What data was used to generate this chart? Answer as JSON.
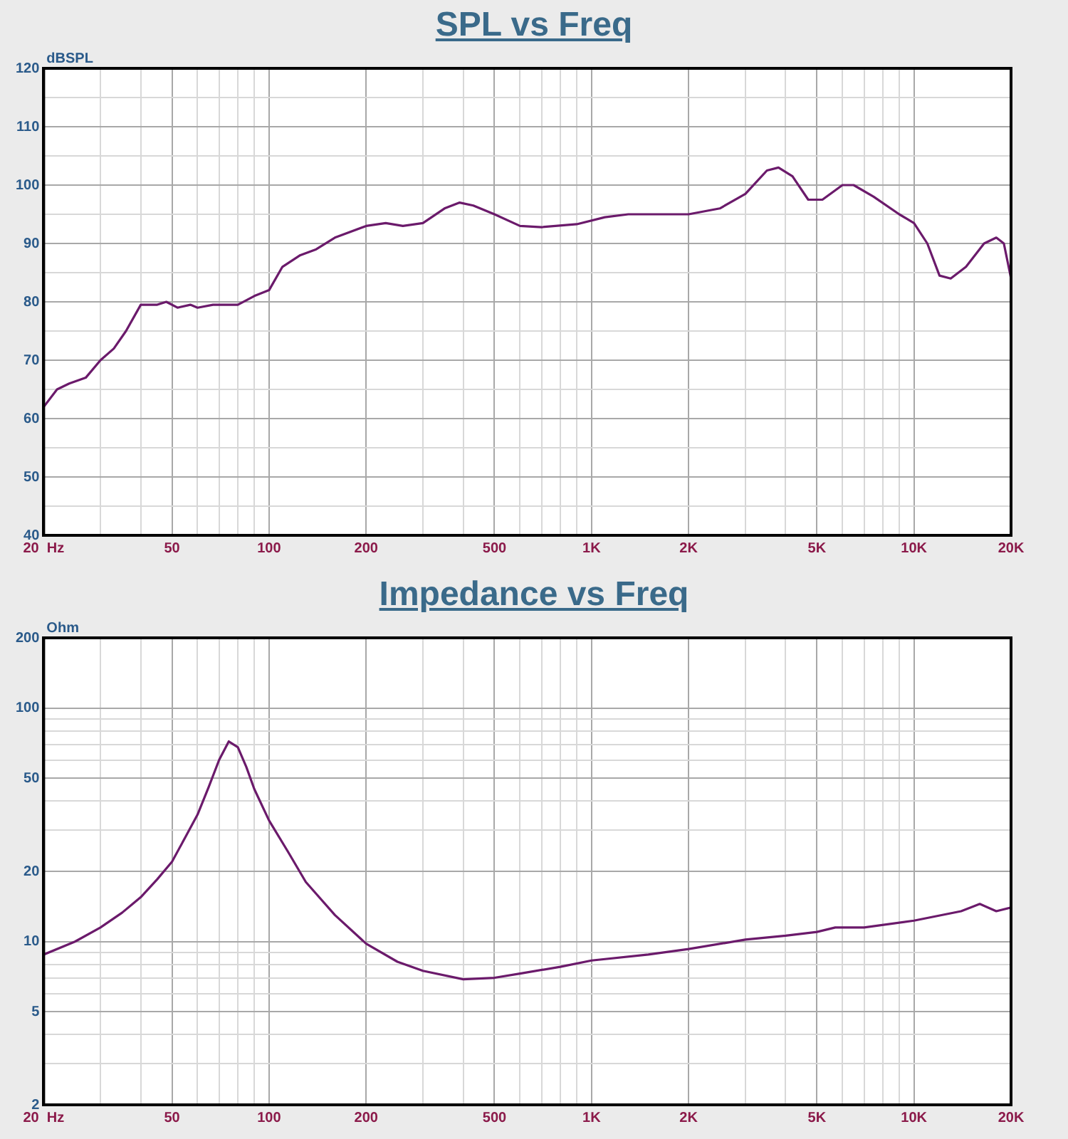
{
  "chart_data": [
    {
      "type": "line",
      "title": "SPL vs Freq",
      "ylabel": "dBSPL",
      "log": "x",
      "grid": true,
      "marker": "none",
      "line_style": "solid",
      "x": [
        20,
        22,
        24,
        27,
        30,
        33,
        36,
        40,
        45,
        48,
        52,
        57,
        60,
        67,
        80,
        90,
        100,
        110,
        125,
        140,
        160,
        200,
        230,
        260,
        300,
        350,
        390,
        430,
        500,
        600,
        700,
        900,
        1100,
        1300,
        2000,
        2500,
        3000,
        3500,
        3800,
        4200,
        4700,
        5200,
        6000,
        6500,
        7500,
        9000,
        10000,
        11000,
        12000,
        13000,
        14500,
        16500,
        18000,
        19000,
        20000
      ],
      "series": [
        {
          "color": "#6b1a6b",
          "values": [
            62,
            65,
            66,
            67,
            70,
            72,
            75,
            79.5,
            79.5,
            80,
            79,
            79.5,
            79,
            79.5,
            79.5,
            81,
            82,
            86,
            88,
            89,
            91,
            93,
            93.5,
            93,
            93.5,
            96,
            97,
            96.5,
            95,
            93,
            92.8,
            93.3,
            94.5,
            95,
            95,
            96,
            98.5,
            102.5,
            103,
            101.5,
            97.5,
            97.5,
            100,
            100,
            98,
            95,
            93.5,
            90,
            84.5,
            84,
            86,
            90,
            91,
            90,
            84
          ]
        }
      ],
      "xlim": [
        20,
        20000
      ],
      "xticks": [
        {
          "value": 20,
          "label": "20  Hz"
        },
        {
          "value": 30,
          "label": null
        },
        {
          "value": 40,
          "label": null
        },
        50,
        {
          "value": 60,
          "label": null
        },
        {
          "value": 70,
          "label": null
        },
        {
          "value": 80,
          "label": null
        },
        {
          "value": 90,
          "label": null
        },
        100,
        200,
        {
          "value": 300,
          "label": null
        },
        {
          "value": 400,
          "label": null
        },
        500,
        {
          "value": 600,
          "label": null
        },
        {
          "value": 700,
          "label": null
        },
        {
          "value": 800,
          "label": null
        },
        {
          "value": 900,
          "label": null
        },
        {
          "value": 1000,
          "label": "1K"
        },
        {
          "value": 2000,
          "label": "2K"
        },
        {
          "value": 3000,
          "label": null
        },
        {
          "value": 4000,
          "label": null
        },
        {
          "value": 5000,
          "label": "5K"
        },
        {
          "value": 6000,
          "label": null
        },
        {
          "value": 7000,
          "label": null
        },
        {
          "value": 8000,
          "label": null
        },
        {
          "value": 9000,
          "label": null
        },
        {
          "value": 10000,
          "label": "10K"
        },
        {
          "value": 20000,
          "label": "20K"
        }
      ],
      "ylim": [
        40,
        120
      ],
      "yticks": [
        40,
        {
          "value": 45,
          "label": null
        },
        50,
        {
          "value": 55,
          "label": null
        },
        60,
        {
          "value": 65,
          "label": null
        },
        70,
        {
          "value": 75,
          "label": null
        },
        80,
        {
          "value": 85,
          "label": null
        },
        90,
        {
          "value": 95,
          "label": null
        },
        100,
        {
          "value": 105,
          "label": null
        },
        110,
        {
          "value": 115,
          "label": null
        },
        120
      ]
    },
    {
      "type": "line",
      "title": "Impedance vs Freq",
      "ylabel": "Ohm",
      "log": "xy",
      "grid": true,
      "marker": "none",
      "line_style": "solid",
      "x": [
        20,
        25,
        30,
        35,
        40,
        45,
        50,
        55,
        60,
        65,
        70,
        75,
        80,
        85,
        90,
        100,
        115,
        130,
        160,
        200,
        250,
        300,
        400,
        500,
        600,
        800,
        1000,
        1500,
        2000,
        3000,
        4000,
        5000,
        5700,
        7000,
        10000,
        14000,
        16000,
        18000,
        20000
      ],
      "series": [
        {
          "color": "#6b1a6b",
          "values": [
            8.8,
            10,
            11.5,
            13.3,
            15.5,
            18.5,
            22,
            28,
            35,
            46,
            60,
            72,
            68,
            56,
            45,
            33,
            24,
            18,
            13,
            9.8,
            8.2,
            7.5,
            6.9,
            7.0,
            7.3,
            7.8,
            8.3,
            8.8,
            9.3,
            10.2,
            10.6,
            11,
            11.5,
            11.5,
            12.3,
            13.5,
            14.5,
            13.5,
            14
          ]
        }
      ],
      "xlim": [
        20,
        20000
      ],
      "xticks": [
        {
          "value": 20,
          "label": "20  Hz"
        },
        {
          "value": 30,
          "label": null
        },
        {
          "value": 40,
          "label": null
        },
        50,
        {
          "value": 60,
          "label": null
        },
        {
          "value": 70,
          "label": null
        },
        {
          "value": 80,
          "label": null
        },
        {
          "value": 90,
          "label": null
        },
        100,
        200,
        {
          "value": 300,
          "label": null
        },
        {
          "value": 400,
          "label": null
        },
        500,
        {
          "value": 600,
          "label": null
        },
        {
          "value": 700,
          "label": null
        },
        {
          "value": 800,
          "label": null
        },
        {
          "value": 900,
          "label": null
        },
        {
          "value": 1000,
          "label": "1K"
        },
        {
          "value": 2000,
          "label": "2K"
        },
        {
          "value": 3000,
          "label": null
        },
        {
          "value": 4000,
          "label": null
        },
        {
          "value": 5000,
          "label": "5K"
        },
        {
          "value": 6000,
          "label": null
        },
        {
          "value": 7000,
          "label": null
        },
        {
          "value": 8000,
          "label": null
        },
        {
          "value": 9000,
          "label": null
        },
        {
          "value": 10000,
          "label": "10K"
        },
        {
          "value": 20000,
          "label": "20K"
        }
      ],
      "ylim": [
        2,
        200
      ],
      "yticks": [
        2,
        {
          "value": 3,
          "label": null
        },
        {
          "value": 4,
          "label": null
        },
        5,
        {
          "value": 6,
          "label": null
        },
        {
          "value": 7,
          "label": null
        },
        {
          "value": 8,
          "label": null
        },
        {
          "value": 9,
          "label": null
        },
        10,
        20,
        {
          "value": 30,
          "label": null
        },
        {
          "value": 40,
          "label": null
        },
        50,
        {
          "value": 60,
          "label": null
        },
        {
          "value": 70,
          "label": null
        },
        {
          "value": 80,
          "label": null
        },
        {
          "value": 90,
          "label": null
        },
        100,
        200
      ]
    }
  ]
}
